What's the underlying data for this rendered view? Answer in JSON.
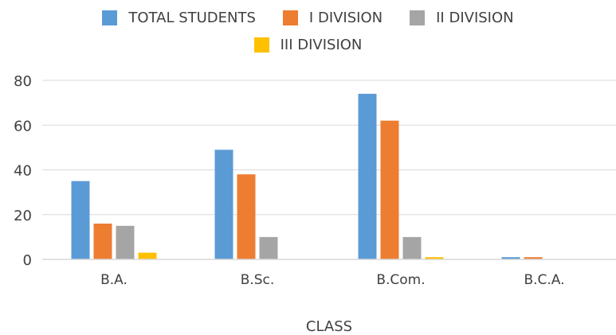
{
  "chart_data": {
    "type": "bar",
    "title": "",
    "xlabel": "CLASS",
    "ylabel": "",
    "ylim": [
      0,
      80
    ],
    "yticks": [
      0,
      20,
      40,
      60,
      80
    ],
    "grid": true,
    "legend_position": "top",
    "categories": [
      "B.A.",
      "B.Sc.",
      "B.Com.",
      "B.C.A."
    ],
    "series": [
      {
        "name": "TOTAL STUDENTS",
        "color": "#5b9bd5",
        "values": [
          35,
          49,
          74,
          1
        ]
      },
      {
        "name": "I DIVISION",
        "color": "#ed7d31",
        "values": [
          16,
          38,
          62,
          1
        ]
      },
      {
        "name": "II DIVISION",
        "color": "#a5a5a5",
        "values": [
          15,
          10,
          10,
          0
        ]
      },
      {
        "name": "III DIVISION",
        "color": "#ffc000",
        "values": [
          3,
          0,
          1,
          0
        ]
      }
    ]
  }
}
